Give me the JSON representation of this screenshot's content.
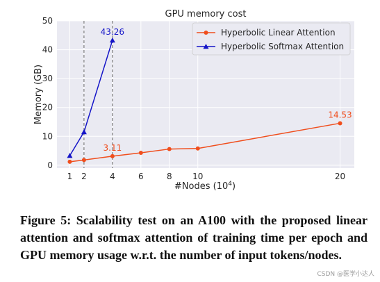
{
  "chart_data": {
    "type": "line",
    "title": "GPU memory cost",
    "xlabel": "#Nodes (10",
    "xlabel_sup": "4",
    "xlabel_suffix": ")",
    "ylabel": "Memory (GB)",
    "xlim": [
      0.1,
      21
    ],
    "ylim": [
      -1,
      50
    ],
    "xticks": [
      1,
      2,
      4,
      6,
      8,
      10,
      20
    ],
    "yticks": [
      0,
      10,
      20,
      30,
      40,
      50
    ],
    "grid": true,
    "legend_position": "top-right",
    "vlines": [
      2,
      4
    ],
    "series": [
      {
        "name": "Hyperbolic Linear Attention",
        "color": "#f04e1d",
        "marker": "circle",
        "x": [
          1,
          2,
          4,
          6,
          8,
          10,
          20
        ],
        "y": [
          1.2,
          1.8,
          3.11,
          4.3,
          5.6,
          5.8,
          14.53
        ]
      },
      {
        "name": "Hyperbolic Softmax Attention",
        "color": "#1515c8",
        "marker": "triangle",
        "x": [
          1,
          2,
          4
        ],
        "y": [
          3.3,
          11.5,
          43.26
        ]
      }
    ],
    "annotations": [
      {
        "text": "43.26",
        "x": 4,
        "y": 43.26,
        "color": "#1515c8"
      },
      {
        "text": "3.11",
        "x": 4,
        "y": 3.11,
        "color": "#f04e1d"
      },
      {
        "text": "14.53",
        "x": 20,
        "y": 14.53,
        "color": "#f04e1d"
      }
    ]
  },
  "caption": "Figure 5: Scalability test on an A100 with the proposed linear attention and softmax attention of training time per epoch and GPU memory usage w.r.t. the number of input tokens/nodes.",
  "watermark": "CSDN @医学小达人"
}
